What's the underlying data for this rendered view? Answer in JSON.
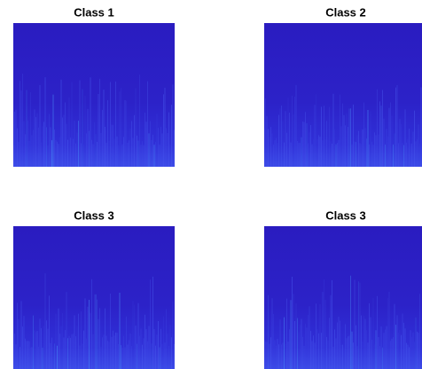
{
  "panels": [
    {
      "title": "Class 1"
    },
    {
      "title": "Class 2"
    },
    {
      "title": "Class 3"
    },
    {
      "title": "Class 3"
    }
  ]
}
